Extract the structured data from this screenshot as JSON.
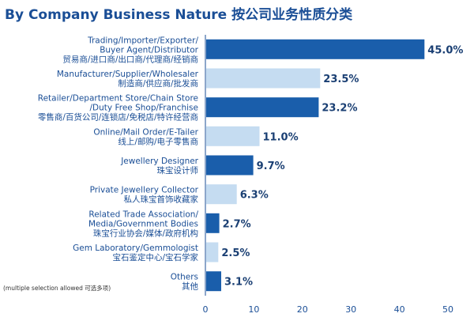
{
  "chart_data": {
    "type": "bar",
    "orientation": "horizontal",
    "title": "By Company Business Nature 按公司业务性质分类",
    "note": "(multiple selection allowed 可选多项)",
    "categories": [
      [
        "Trading/Importer/Exporter/",
        "Buyer Agent/Distributor",
        "贸易商/进口商/出口商/代理商/经销商"
      ],
      [
        "Manufacturer/Supplier/Wholesaler",
        "制造商/供应商/批发商"
      ],
      [
        "Retailer/Department Store/Chain Store",
        "/Duty Free Shop/Franchise",
        "零售商/百货公司/连锁店/免税店/特许经营商"
      ],
      [
        "Online/Mail Order/E-Tailer",
        "线上/邮购/电子零售商"
      ],
      [
        "Jewellery Designer",
        "珠宝设计师"
      ],
      [
        "Private Jewellery Collector",
        "私人珠宝首饰收藏家"
      ],
      [
        "Related Trade Association/",
        "Media/Government Bodies",
        "珠宝行业协会/媒体/政府机构"
      ],
      [
        "Gem Laboratory/Gemmologist",
        "宝石鉴定中心/宝石学家"
      ],
      [
        "Others",
        "其他"
      ]
    ],
    "values": [
      45.0,
      23.5,
      23.2,
      11.0,
      9.7,
      6.3,
      2.7,
      2.5,
      3.1
    ],
    "value_labels": [
      "45.0%",
      "23.5%",
      "23.2%",
      "11.0%",
      "9.7%",
      "6.3%",
      "2.7%",
      "2.5%",
      "3.1%"
    ],
    "bar_colors": [
      "#1a5eab",
      "#c5dcf1",
      "#1a5eab",
      "#c5dcf1",
      "#1a5eab",
      "#c5dcf1",
      "#1a5eab",
      "#c5dcf1",
      "#1a5eab"
    ],
    "xlim": [
      0,
      50
    ],
    "xticks": [
      0,
      10,
      20,
      30,
      40,
      50
    ],
    "grid": false
  }
}
